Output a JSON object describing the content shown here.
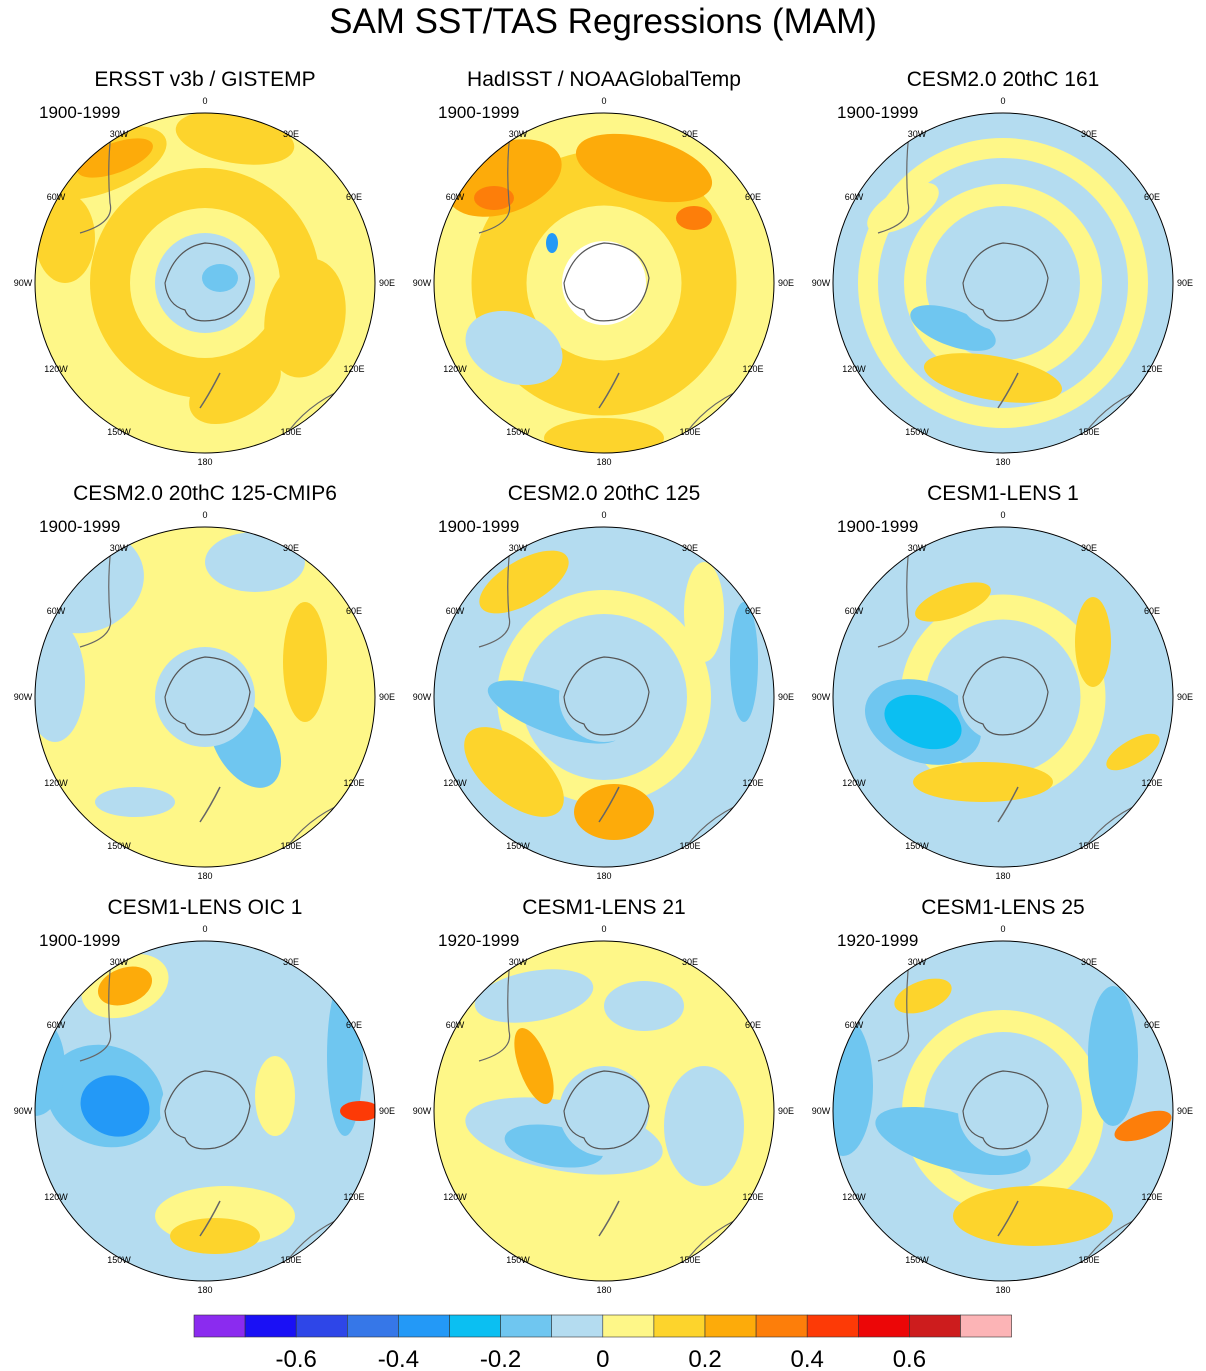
{
  "figure": {
    "title": "SAM SST/TAS Regressions (MAM)"
  },
  "panels": [
    {
      "title": "ERSST v3b / GISTEMP",
      "period": "1900-1999",
      "pattern": "warm"
    },
    {
      "title": "HadISST / NOAAGlobalTemp",
      "period": "1900-1999",
      "pattern": "warm-masked"
    },
    {
      "title": "CESM2.0 20thC 161",
      "period": "1900-1999",
      "pattern": "cool-ring"
    },
    {
      "title": "CESM2.0 20thC 125-CMIP6",
      "period": "1900-1999",
      "pattern": "mixed"
    },
    {
      "title": "CESM2.0 20thC 125",
      "period": "1900-1999",
      "pattern": "mixed-blue"
    },
    {
      "title": "CESM1-LENS 1",
      "period": "1900-1999",
      "pattern": "blue-core"
    },
    {
      "title": "CESM1-LENS OIC 1",
      "period": "1900-1999",
      "pattern": "blue-strong"
    },
    {
      "title": "CESM1-LENS 21",
      "period": "1920-1999",
      "pattern": "blue-band"
    },
    {
      "title": "CESM1-LENS 25",
      "period": "1920-1999",
      "pattern": "blue-band-east"
    }
  ],
  "longitude_labels": [
    "0",
    "30E",
    "60E",
    "90E",
    "120E",
    "150E",
    "180",
    "150W",
    "120W",
    "90W",
    "60W",
    "30W"
  ],
  "colorbar": {
    "colors": [
      "#8b2bef",
      "#1a10f5",
      "#2e46e8",
      "#3677e8",
      "#2399f7",
      "#0bbff2",
      "#6fc6f0",
      "#b4dcf0",
      "#fef788",
      "#fdd42c",
      "#fdab0a",
      "#fd7e0a",
      "#fd3a06",
      "#ec0607",
      "#cd1c1d",
      "#fcb4b6"
    ],
    "tick_labels": [
      "-0.6",
      "-0.4",
      "-0.2",
      "0",
      "0.2",
      "0.4",
      "0.6"
    ]
  }
}
